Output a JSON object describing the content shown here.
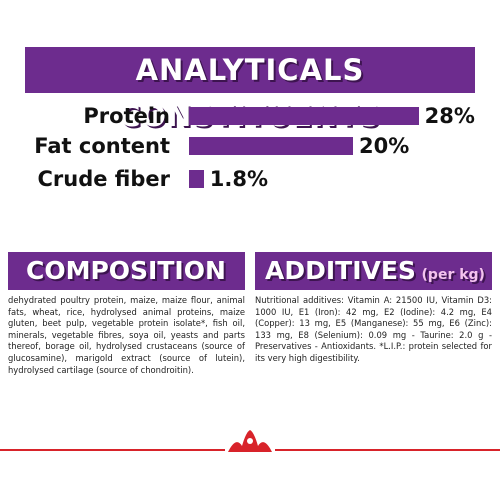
{
  "chart_data": {
    "type": "bar",
    "title": "ANALYTICALS CONSTITUENTS",
    "categories": [
      "Protein",
      "Fat content",
      "Crude fiber"
    ],
    "values": [
      28,
      20,
      1.8
    ],
    "value_labels": [
      "28%",
      "20%",
      "1.8%"
    ],
    "color": "#6d2c8e"
  },
  "composition": {
    "title": "COMPOSITION",
    "text": "dehydrated poultry protein, maize, maize flour, animal fats, wheat, rice, hydrolysed animal proteins, maize gluten, beet pulp, vegetable protein isolate*, fish oil, minerals, vegetable fibres, soya oil, yeasts and parts thereof, borage oil, hydrolysed crustaceans (source of glucosamine), marigold extract (source of lutein), hydrolysed cartilage (source of chondroitin)."
  },
  "additives": {
    "title": "ADDITIVES",
    "subtitle": "(per kg)",
    "text": "Nutritional additives: Vitamin A: 21500 IU, Vitamin D3: 1000 IU, E1 (Iron): 42 mg, E2 (Iodine): 4.2 mg, E4 (Copper): 13 mg, E5 (Manganese): 55 mg, E6 (Zinc): 133 mg, E8 (Selenium): 0.09 mg - Taurine: 2.0 g - Preservatives - Antioxidants. *L.I.P.: protein selected for its very high digestibility."
  }
}
